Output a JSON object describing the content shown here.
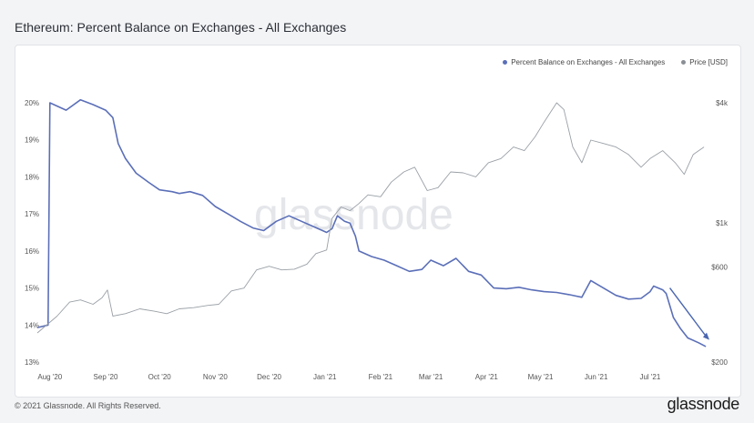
{
  "title": "Ethereum: Percent Balance on Exchanges - All Exchanges",
  "footer": {
    "copyright": "© 2021 Glassnode. All Rights Reserved.",
    "logo": "glassnode"
  },
  "watermark": "glassnode",
  "colors": {
    "balance": "#5b6fb8",
    "price": "#9aa0a6",
    "arrow": "#4a66b0"
  },
  "legend": [
    {
      "label": "Percent Balance on Exchanges - All Exchanges",
      "color": "#5b6fb8"
    },
    {
      "label": "Price [USD]",
      "color": "#8a8f96"
    }
  ],
  "chart_data": {
    "type": "line",
    "title": "Ethereum: Percent Balance on Exchanges - All Exchanges",
    "x_ticks": [
      "Aug '20",
      "Sep '20",
      "Oct '20",
      "Nov '20",
      "Dec '20",
      "Jan '21",
      "Feb '21",
      "Mar '21",
      "Apr '21",
      "May '21",
      "Jun '21",
      "Jul '21"
    ],
    "y_left_ticks": [
      "20%",
      "19%",
      "18%",
      "17%",
      "16%",
      "15%",
      "14%",
      "13%"
    ],
    "y_left_range": [
      13,
      20
    ],
    "y_right_ticks": [
      "$4k",
      "$1k",
      "$600",
      "$200"
    ],
    "y_right_scale": "log",
    "y_right_range": [
      200,
      4000
    ],
    "grid": false,
    "legend_position": "top-right",
    "series": [
      {
        "name": "Percent Balance on Exchanges - All Exchanges",
        "axis": "left",
        "points": [
          [
            "2020-07-25",
            13.93
          ],
          [
            "2020-07-31",
            14.0
          ],
          [
            "2020-08-01",
            20.0
          ],
          [
            "2020-08-10",
            19.8
          ],
          [
            "2020-08-18",
            20.08
          ],
          [
            "2020-08-25",
            19.95
          ],
          [
            "2020-09-01",
            19.8
          ],
          [
            "2020-09-05",
            19.6
          ],
          [
            "2020-09-08",
            18.9
          ],
          [
            "2020-09-12",
            18.5
          ],
          [
            "2020-09-18",
            18.1
          ],
          [
            "2020-09-25",
            17.85
          ],
          [
            "2020-10-01",
            17.65
          ],
          [
            "2020-10-08",
            17.6
          ],
          [
            "2020-10-12",
            17.55
          ],
          [
            "2020-10-18",
            17.6
          ],
          [
            "2020-10-25",
            17.5
          ],
          [
            "2020-11-01",
            17.2
          ],
          [
            "2020-11-08",
            17.0
          ],
          [
            "2020-11-15",
            16.8
          ],
          [
            "2020-11-22",
            16.62
          ],
          [
            "2020-11-28",
            16.55
          ],
          [
            "2020-12-05",
            16.8
          ],
          [
            "2020-12-12",
            16.95
          ],
          [
            "2020-12-19",
            16.8
          ],
          [
            "2020-12-26",
            16.65
          ],
          [
            "2021-01-02",
            16.5
          ],
          [
            "2021-01-05",
            16.6
          ],
          [
            "2021-01-08",
            16.95
          ],
          [
            "2021-01-12",
            16.8
          ],
          [
            "2021-01-15",
            16.75
          ],
          [
            "2021-01-18",
            16.4
          ],
          [
            "2021-01-20",
            16.0
          ],
          [
            "2021-01-27",
            15.85
          ],
          [
            "2021-02-03",
            15.75
          ],
          [
            "2021-02-10",
            15.6
          ],
          [
            "2021-02-17",
            15.45
          ],
          [
            "2021-02-24",
            15.5
          ],
          [
            "2021-03-01",
            15.75
          ],
          [
            "2021-03-08",
            15.6
          ],
          [
            "2021-03-15",
            15.8
          ],
          [
            "2021-03-22",
            15.45
          ],
          [
            "2021-03-29",
            15.35
          ],
          [
            "2021-04-05",
            15.0
          ],
          [
            "2021-04-12",
            14.98
          ],
          [
            "2021-04-19",
            15.02
          ],
          [
            "2021-04-26",
            14.95
          ],
          [
            "2021-05-03",
            14.9
          ],
          [
            "2021-05-10",
            14.88
          ],
          [
            "2021-05-17",
            14.82
          ],
          [
            "2021-05-24",
            14.75
          ],
          [
            "2021-05-29",
            15.2
          ],
          [
            "2021-06-05",
            15.0
          ],
          [
            "2021-06-12",
            14.8
          ],
          [
            "2021-06-19",
            14.7
          ],
          [
            "2021-06-26",
            14.72
          ],
          [
            "2021-07-01",
            14.9
          ],
          [
            "2021-07-03",
            15.05
          ],
          [
            "2021-07-08",
            14.95
          ],
          [
            "2021-07-10",
            14.85
          ],
          [
            "2021-07-14",
            14.2
          ],
          [
            "2021-07-18",
            13.9
          ],
          [
            "2021-07-22",
            13.65
          ],
          [
            "2021-07-28",
            13.52
          ],
          [
            "2021-08-01",
            13.42
          ]
        ]
      },
      {
        "name": "Price [USD]",
        "axis": "right",
        "points": [
          [
            "2020-07-25",
            280
          ],
          [
            "2020-08-05",
            340
          ],
          [
            "2020-08-12",
            400
          ],
          [
            "2020-08-18",
            410
          ],
          [
            "2020-08-25",
            390
          ],
          [
            "2020-08-30",
            420
          ],
          [
            "2020-09-02",
            460
          ],
          [
            "2020-09-05",
            340
          ],
          [
            "2020-09-12",
            350
          ],
          [
            "2020-09-20",
            370
          ],
          [
            "2020-09-28",
            360
          ],
          [
            "2020-10-05",
            350
          ],
          [
            "2020-10-12",
            370
          ],
          [
            "2020-10-20",
            375
          ],
          [
            "2020-10-28",
            385
          ],
          [
            "2020-11-03",
            390
          ],
          [
            "2020-11-10",
            455
          ],
          [
            "2020-11-17",
            470
          ],
          [
            "2020-11-24",
            580
          ],
          [
            "2020-12-01",
            605
          ],
          [
            "2020-12-08",
            580
          ],
          [
            "2020-12-15",
            585
          ],
          [
            "2020-12-22",
            620
          ],
          [
            "2020-12-27",
            700
          ],
          [
            "2021-01-02",
            730
          ],
          [
            "2021-01-05",
            1050
          ],
          [
            "2021-01-10",
            1200
          ],
          [
            "2021-01-15",
            1150
          ],
          [
            "2021-01-20",
            1250
          ],
          [
            "2021-01-25",
            1380
          ],
          [
            "2021-02-01",
            1350
          ],
          [
            "2021-02-07",
            1600
          ],
          [
            "2021-02-14",
            1800
          ],
          [
            "2021-02-20",
            1900
          ],
          [
            "2021-02-27",
            1450
          ],
          [
            "2021-03-05",
            1500
          ],
          [
            "2021-03-12",
            1800
          ],
          [
            "2021-03-19",
            1780
          ],
          [
            "2021-03-26",
            1700
          ],
          [
            "2021-04-02",
            2000
          ],
          [
            "2021-04-09",
            2100
          ],
          [
            "2021-04-16",
            2400
          ],
          [
            "2021-04-22",
            2300
          ],
          [
            "2021-04-28",
            2700
          ],
          [
            "2021-05-03",
            3200
          ],
          [
            "2021-05-10",
            4000
          ],
          [
            "2021-05-14",
            3700
          ],
          [
            "2021-05-19",
            2400
          ],
          [
            "2021-05-24",
            2000
          ],
          [
            "2021-05-29",
            2600
          ],
          [
            "2021-06-05",
            2500
          ],
          [
            "2021-06-12",
            2400
          ],
          [
            "2021-06-19",
            2200
          ],
          [
            "2021-06-26",
            1900
          ],
          [
            "2021-07-01",
            2100
          ],
          [
            "2021-07-08",
            2300
          ],
          [
            "2021-07-15",
            2000
          ],
          [
            "2021-07-20",
            1750
          ],
          [
            "2021-07-25",
            2200
          ],
          [
            "2021-07-31",
            2400
          ]
        ]
      }
    ]
  }
}
